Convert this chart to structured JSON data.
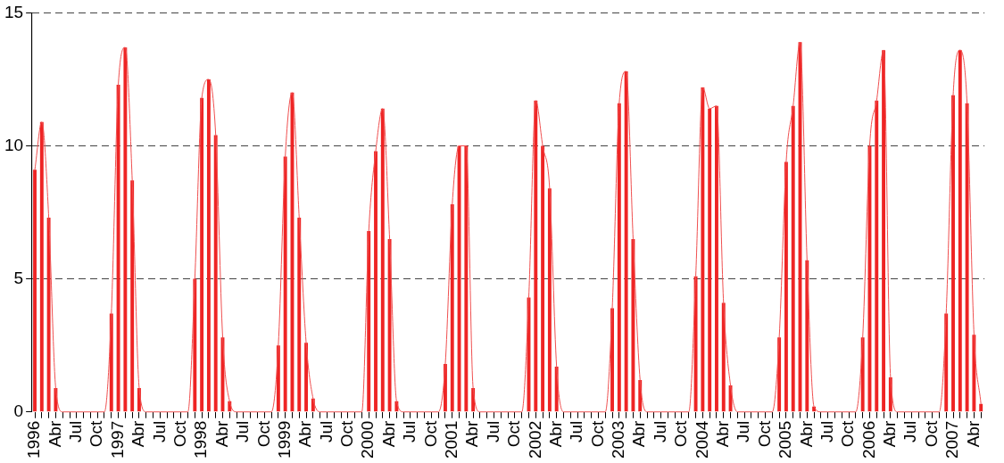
{
  "chart_data": {
    "type": "bar",
    "categories": [
      "1996",
      null,
      null,
      "Abr",
      null,
      null,
      "Jul",
      null,
      null,
      "Oct",
      null,
      null,
      "1997",
      null,
      null,
      "Abr",
      null,
      null,
      "Jul",
      null,
      null,
      "Oct",
      null,
      null,
      "1998",
      null,
      null,
      "Abr",
      null,
      null,
      "Jul",
      null,
      null,
      "Oct",
      null,
      null,
      "1999",
      null,
      null,
      "Abr",
      null,
      null,
      "Jul",
      null,
      null,
      "Oct",
      null,
      null,
      "2000",
      null,
      null,
      "Abr",
      null,
      null,
      "Jul",
      null,
      null,
      "Oct",
      null,
      null,
      "2001",
      null,
      null,
      "Abr",
      null,
      null,
      "Jul",
      null,
      null,
      "Oct",
      null,
      null,
      "2002",
      null,
      null,
      "Abr",
      null,
      null,
      "Jul",
      null,
      null,
      "Oct",
      null,
      null,
      "2003",
      null,
      null,
      "Abr",
      null,
      null,
      "Jul",
      null,
      null,
      "Oct",
      null,
      null,
      "2004",
      null,
      null,
      "Abr",
      null,
      null,
      "Jul",
      null,
      null,
      "Oct",
      null,
      null,
      "2005",
      null,
      null,
      "Abr",
      null,
      null,
      "Jul",
      null,
      null,
      "Oct",
      null,
      null,
      "2006",
      null,
      null,
      "Abr",
      null,
      null,
      "Jul",
      null,
      null,
      "Oct",
      null,
      null,
      "2007",
      null,
      null,
      "Abr",
      null
    ],
    "series": [
      {
        "color": "#ee2424",
        "values": [
          9.1,
          10.9,
          7.3,
          0.9,
          0,
          0,
          0,
          0,
          0,
          0,
          0,
          3.7,
          12.3,
          13.7,
          8.7,
          0.9,
          0,
          0,
          0,
          0,
          0,
          0,
          0,
          5.0,
          11.8,
          12.5,
          10.4,
          2.8,
          0.4,
          0,
          0,
          0,
          0,
          0,
          0,
          2.5,
          9.6,
          12.0,
          7.3,
          2.6,
          0.5,
          0,
          0,
          0,
          0,
          0,
          0,
          0,
          6.8,
          9.8,
          11.4,
          6.5,
          0.4,
          0,
          0,
          0,
          0,
          0,
          0,
          1.8,
          7.8,
          10.0,
          10.0,
          0.9,
          0,
          0,
          0,
          0,
          0,
          0,
          0,
          4.3,
          11.7,
          10.0,
          8.4,
          1.7,
          0,
          0,
          0,
          0,
          0,
          0,
          0,
          3.9,
          11.6,
          12.8,
          6.5,
          1.2,
          0,
          0,
          0,
          0,
          0,
          0,
          0,
          5.1,
          12.2,
          11.4,
          11.5,
          4.1,
          1.0,
          0,
          0,
          0,
          0,
          0,
          0,
          2.8,
          9.4,
          11.5,
          13.9,
          5.7,
          0.2,
          0,
          0,
          0,
          0,
          0,
          0,
          2.8,
          10.0,
          11.7,
          13.6,
          1.3,
          0,
          0,
          0,
          0,
          0,
          0,
          0,
          3.7,
          11.9,
          13.6,
          11.6,
          2.9,
          0.3
        ]
      },
      {
        "type": "line",
        "color": "#f05050",
        "values": [
          9.1,
          10.9,
          7.3,
          0.9,
          0,
          0,
          0,
          0,
          0,
          0,
          0,
          3.7,
          12.3,
          13.7,
          8.7,
          0.9,
          0,
          0,
          0,
          0,
          0,
          0,
          0,
          5.0,
          11.8,
          12.5,
          10.4,
          2.8,
          0.4,
          0,
          0,
          0,
          0,
          0,
          0,
          2.5,
          9.6,
          12.0,
          7.3,
          2.6,
          0.5,
          0,
          0,
          0,
          0,
          0,
          0,
          0,
          6.8,
          9.8,
          11.4,
          6.5,
          0.4,
          0,
          0,
          0,
          0,
          0,
          0,
          1.8,
          7.8,
          10.0,
          10.0,
          0.9,
          0,
          0,
          0,
          0,
          0,
          0,
          0,
          4.3,
          11.7,
          10.0,
          8.4,
          1.7,
          0,
          0,
          0,
          0,
          0,
          0,
          0,
          3.9,
          11.6,
          12.8,
          6.5,
          1.2,
          0,
          0,
          0,
          0,
          0,
          0,
          0,
          5.1,
          12.2,
          11.4,
          11.5,
          4.1,
          1.0,
          0,
          0,
          0,
          0,
          0,
          0,
          2.8,
          9.4,
          11.5,
          13.9,
          5.7,
          0.2,
          0,
          0,
          0,
          0,
          0,
          0,
          2.8,
          10.0,
          11.7,
          13.6,
          1.3,
          0,
          0,
          0,
          0,
          0,
          0,
          0,
          3.7,
          11.9,
          13.6,
          11.6,
          2.9,
          0.3
        ]
      }
    ],
    "ylim": [
      0,
      15
    ],
    "yticks": [
      0,
      5,
      10,
      15
    ],
    "grid": "y",
    "legend": false,
    "marker": "none"
  }
}
